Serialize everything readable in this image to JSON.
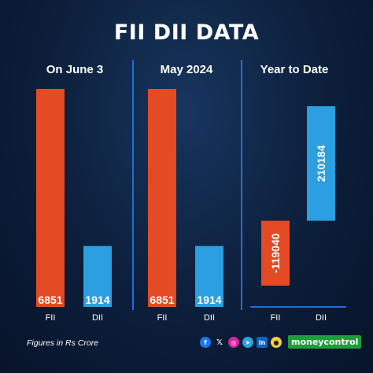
{
  "title": "FII DII DATA",
  "footer_note": "Figures in Rs Crore",
  "brand": "moneycontrol",
  "social_icons": [
    "facebook-icon",
    "x-icon",
    "instagram-icon",
    "telegram-icon",
    "linkedin-icon",
    "snapchat-icon"
  ],
  "colors": {
    "fii": "#e44a23",
    "dii": "#2b9fe0",
    "background": "#0c1e3a",
    "divider": "#1f6fd6",
    "brand": "#1f9d3a"
  },
  "chart_data": [
    {
      "type": "bar",
      "title": "On June 3",
      "categories": [
        "FII",
        "DII"
      ],
      "values": [
        6851,
        1914
      ],
      "value_labels": [
        "6851",
        "1914"
      ]
    },
    {
      "type": "bar",
      "title": "May 2024",
      "categories": [
        "FII",
        "DII"
      ],
      "values": [
        6851,
        1914
      ],
      "value_labels": [
        "6851",
        "1914"
      ]
    },
    {
      "type": "bar",
      "title": "Year to Date",
      "categories": [
        "FII",
        "DII"
      ],
      "values": [
        -119040,
        210184
      ],
      "value_labels": [
        "-119040",
        "210184"
      ]
    }
  ]
}
